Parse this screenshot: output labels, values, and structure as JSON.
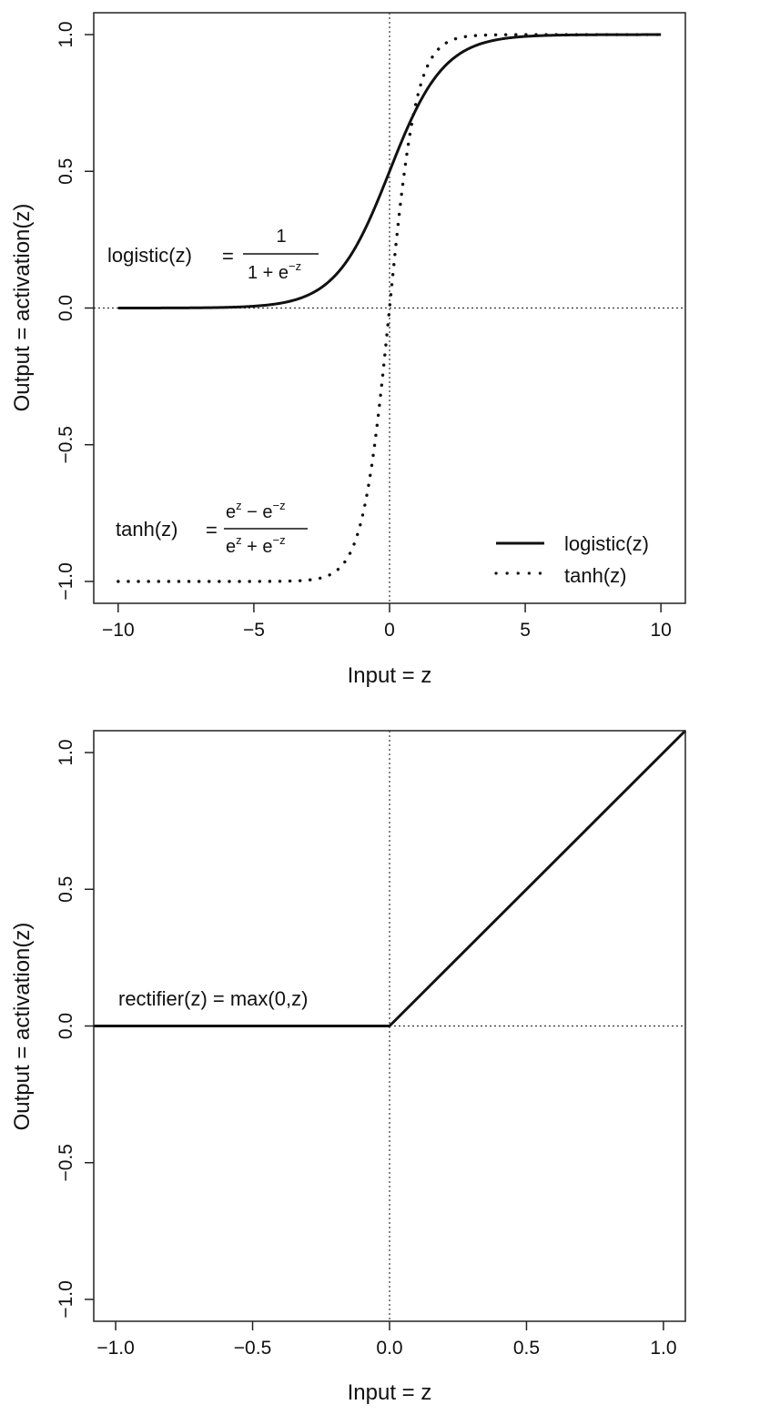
{
  "chart_data": [
    {
      "type": "line",
      "xlabel": "Input = z",
      "ylabel": "Output = activation(z)",
      "xlim": [
        -10.9,
        10.9
      ],
      "ylim": [
        -1.08,
        1.08
      ],
      "xticks": [
        -10,
        -5,
        0,
        5,
        10
      ],
      "xtick_labels": [
        "−10",
        "−5",
        "0",
        "5",
        "10"
      ],
      "yticks": [
        -1.0,
        -0.5,
        0.0,
        0.5,
        1.0
      ],
      "ytick_labels": [
        "−1.0",
        "−0.5",
        "0.0",
        "0.5",
        "1.0"
      ],
      "reference_lines": {
        "x": 0,
        "y": 0,
        "style": "dotted"
      },
      "series": [
        {
          "name": "logistic(z)",
          "style": "solid",
          "function": "logistic",
          "x_range": [
            -10,
            10
          ]
        },
        {
          "name": "tanh(z)",
          "style": "dotted",
          "function": "tanh",
          "x_range": [
            -10,
            10
          ]
        }
      ],
      "legend": {
        "position": "bottom-right",
        "entries": [
          "logistic(z)",
          "tanh(z)"
        ]
      },
      "annotations": {
        "logistic": {
          "prefix": "logistic",
          "arg": "(z)",
          "eq": "=",
          "numerator": "1",
          "denominator": "1 + e",
          "denominator_sup": "−z"
        },
        "tanh": {
          "prefix": "tanh",
          "arg": "(z)",
          "eq": "=",
          "num_base1": "e",
          "num_sup1": "z",
          "num_mid": " − e",
          "num_sup2": "−z",
          "den_base1": "e",
          "den_sup1": "z",
          "den_mid": " + e",
          "den_sup2": "−z"
        }
      }
    },
    {
      "type": "line",
      "xlabel": "Input = z",
      "ylabel": "Output = activation(z)",
      "xlim": [
        -1.08,
        1.08
      ],
      "ylim": [
        -1.08,
        1.08
      ],
      "xticks": [
        -1.0,
        -0.5,
        0.0,
        0.5,
        1.0
      ],
      "xtick_labels": [
        "−1.0",
        "−0.5",
        "0.0",
        "0.5",
        "1.0"
      ],
      "yticks": [
        -1.0,
        -0.5,
        0.0,
        0.5,
        1.0
      ],
      "ytick_labels": [
        "−1.0",
        "−0.5",
        "0.0",
        "0.5",
        "1.0"
      ],
      "reference_lines": {
        "x": 0,
        "y": 0,
        "style": "dotted"
      },
      "series": [
        {
          "name": "rectifier(z)",
          "style": "solid",
          "x": [
            -1.08,
            0,
            1.08
          ],
          "y": [
            0,
            0,
            1.08
          ]
        }
      ],
      "annotations": {
        "rectifier": {
          "text": "rectifier(z) = max(0,z)"
        }
      }
    }
  ]
}
